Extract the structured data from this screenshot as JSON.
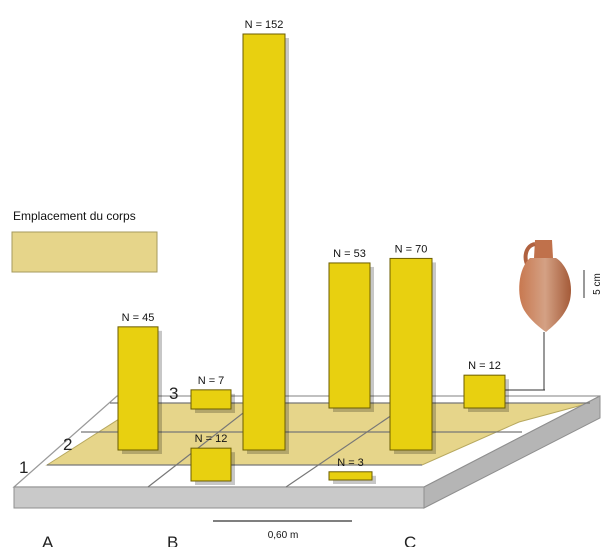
{
  "chart_data": {
    "type": "bar",
    "title": "",
    "columns": [
      "A",
      "B",
      "C"
    ],
    "rows": [
      "1",
      "2",
      "3"
    ],
    "bars": [
      {
        "id": "bar-n45",
        "label": "N = 45",
        "value": 45
      },
      {
        "id": "bar-n7",
        "label": "N = 7",
        "value": 7
      },
      {
        "id": "bar-n12b",
        "label": "N = 12",
        "value": 12
      },
      {
        "id": "bar-n152",
        "label": "N = 152",
        "value": 152
      },
      {
        "id": "bar-n53",
        "label": "N = 53",
        "value": 53
      },
      {
        "id": "bar-n70",
        "label": "N = 70",
        "value": 70
      },
      {
        "id": "bar-n3",
        "label": "N = 3",
        "value": 3
      },
      {
        "id": "bar-n12c",
        "label": "N = 12",
        "value": 12
      }
    ],
    "legend": {
      "label": "Emplacement du corps",
      "color": "#e6d58a"
    },
    "scale_bar": "0,60 m",
    "amphora_scale": "5 cm",
    "colors": {
      "bar": "#e8d010",
      "body_zone": "#e6d58a",
      "slab_side": "#c8c8c8",
      "slab_top": "#ffffff"
    }
  }
}
